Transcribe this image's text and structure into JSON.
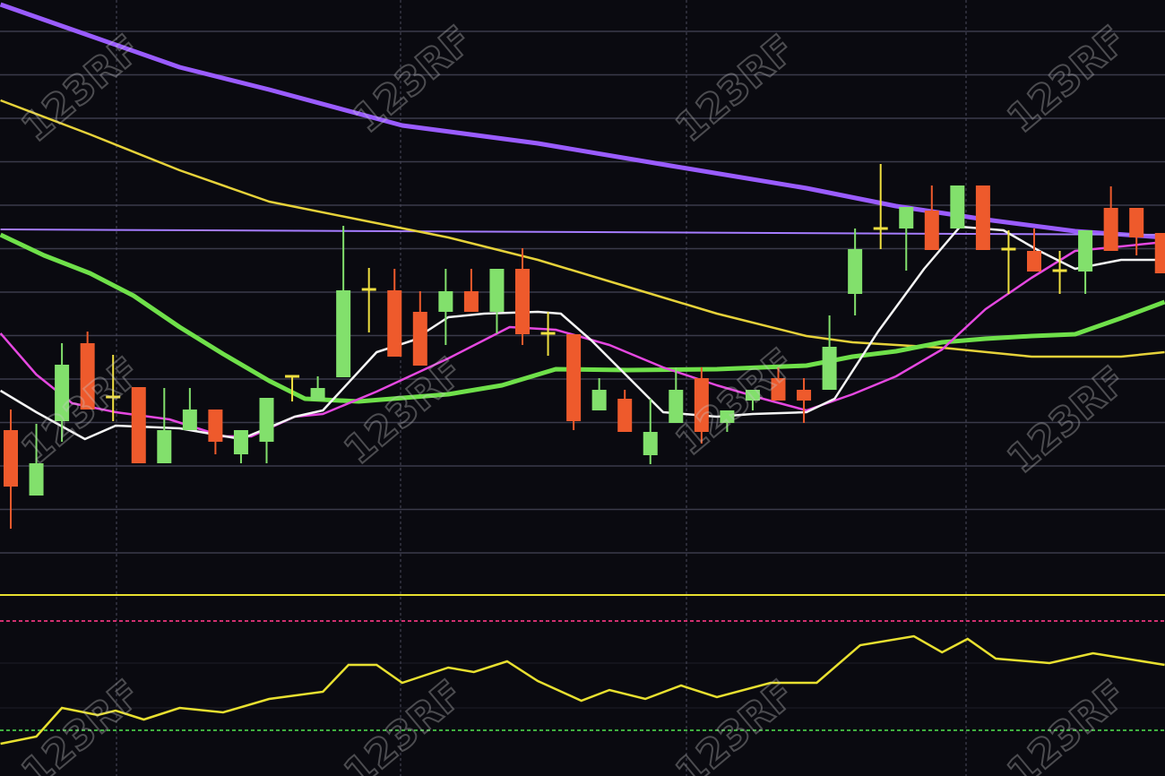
{
  "chart_data": {
    "type": "candlestick",
    "title": "",
    "xlabel": "",
    "ylabel": "",
    "grid": true,
    "ylim": [
      38.3,
      100
    ],
    "colors": {
      "background": "#0a0a10",
      "grid": "#3a3a4a",
      "up": "#82e06c",
      "down": "#ee5a2c",
      "doji": "#f0e040"
    },
    "candles": [
      {
        "o": 52.0,
        "h": 54.3,
        "l": 41.0,
        "c": 45.7
      },
      {
        "o": 44.7,
        "h": 52.7,
        "l": 44.7,
        "c": 48.3
      },
      {
        "o": 53.0,
        "h": 61.7,
        "l": 50.7,
        "c": 59.3
      },
      {
        "o": 61.7,
        "h": 63.0,
        "l": 54.3,
        "c": 54.3
      },
      {
        "o": 55.7,
        "h": 60.4,
        "l": 53.0,
        "c": 55.7
      },
      {
        "o": 56.8,
        "h": 56.8,
        "l": 48.3,
        "c": 48.3
      },
      {
        "o": 48.3,
        "h": 56.7,
        "l": 48.3,
        "c": 52.0
      },
      {
        "o": 52.0,
        "h": 56.7,
        "l": 52.0,
        "c": 54.3
      },
      {
        "o": 54.3,
        "h": 54.3,
        "l": 49.3,
        "c": 50.7
      },
      {
        "o": 49.3,
        "h": 52.0,
        "l": 48.3,
        "c": 52.0
      },
      {
        "o": 50.7,
        "h": 55.6,
        "l": 48.3,
        "c": 55.6
      },
      {
        "o": 58.0,
        "h": 58.0,
        "l": 55.2,
        "c": 58.0
      },
      {
        "o": 55.3,
        "h": 58.0,
        "l": 55.3,
        "c": 56.7
      },
      {
        "o": 57.9,
        "h": 74.8,
        "l": 57.9,
        "c": 67.6
      },
      {
        "o": 67.7,
        "h": 70.1,
        "l": 62.9,
        "c": 67.7
      },
      {
        "o": 67.6,
        "h": 70.0,
        "l": 60.2,
        "c": 60.2
      },
      {
        "o": 65.2,
        "h": 67.5,
        "l": 59.2,
        "c": 59.2
      },
      {
        "o": 65.2,
        "h": 70.0,
        "l": 61.5,
        "c": 67.5
      },
      {
        "o": 67.5,
        "h": 70.0,
        "l": 65.2,
        "c": 65.2
      },
      {
        "o": 65.2,
        "h": 70.0,
        "l": 62.8,
        "c": 70.0
      },
      {
        "o": 70.0,
        "h": 72.3,
        "l": 61.5,
        "c": 62.7
      },
      {
        "o": 62.8,
        "h": 65.2,
        "l": 60.3,
        "c": 62.8
      },
      {
        "o": 62.7,
        "h": 62.7,
        "l": 52.0,
        "c": 53.0
      },
      {
        "o": 54.2,
        "h": 57.8,
        "l": 54.2,
        "c": 56.5
      },
      {
        "o": 55.5,
        "h": 56.5,
        "l": 51.8,
        "c": 51.8
      },
      {
        "o": 49.2,
        "h": 55.5,
        "l": 48.2,
        "c": 51.8
      },
      {
        "o": 52.8,
        "h": 59.0,
        "l": 52.8,
        "c": 56.5
      },
      {
        "o": 57.8,
        "h": 59.0,
        "l": 50.5,
        "c": 51.8
      },
      {
        "o": 52.8,
        "h": 54.2,
        "l": 51.8,
        "c": 54.2
      },
      {
        "o": 55.3,
        "h": 56.5,
        "l": 54.2,
        "c": 56.5
      },
      {
        "o": 57.8,
        "h": 59.0,
        "l": 55.3,
        "c": 55.3
      },
      {
        "o": 56.5,
        "h": 57.8,
        "l": 52.8,
        "c": 55.3
      },
      {
        "o": 56.5,
        "h": 64.8,
        "l": 56.5,
        "c": 61.3
      },
      {
        "o": 67.2,
        "h": 74.5,
        "l": 64.8,
        "c": 72.2
      },
      {
        "o": 74.5,
        "h": 81.7,
        "l": 72.2,
        "c": 74.5
      },
      {
        "o": 74.5,
        "h": 76.9,
        "l": 69.8,
        "c": 76.9
      },
      {
        "o": 76.5,
        "h": 79.3,
        "l": 72.1,
        "c": 72.1
      },
      {
        "o": 74.5,
        "h": 79.3,
        "l": 74.5,
        "c": 79.3
      },
      {
        "o": 79.3,
        "h": 79.3,
        "l": 72.1,
        "c": 72.1
      },
      {
        "o": 72.2,
        "h": 74.3,
        "l": 67.2,
        "c": 72.2
      },
      {
        "o": 72.0,
        "h": 74.5,
        "l": 69.7,
        "c": 69.7
      },
      {
        "o": 69.8,
        "h": 72.0,
        "l": 67.2,
        "c": 69.8
      },
      {
        "o": 69.7,
        "h": 74.3,
        "l": 67.2,
        "c": 74.3
      },
      {
        "o": 76.8,
        "h": 79.2,
        "l": 72.0,
        "c": 72.0
      },
      {
        "o": 76.8,
        "h": 76.8,
        "l": 71.5,
        "c": 73.5
      },
      {
        "o": 74.0,
        "h": 74.0,
        "l": 69.5,
        "c": 69.5
      }
    ],
    "overlays": [
      {
        "color": "#9a5cff",
        "weight": "thick",
        "points": [
          [
            -0.4,
            99.5
          ],
          [
            3.1,
            96.0
          ],
          [
            6.6,
            92.5
          ],
          [
            10.1,
            90.0
          ],
          [
            15.3,
            86.0
          ],
          [
            20.6,
            84.0
          ],
          [
            25.8,
            81.5
          ],
          [
            31.1,
            79.0
          ],
          [
            34.6,
            77.0
          ],
          [
            38.1,
            75.5
          ],
          [
            41.6,
            74.2
          ],
          [
            45.1,
            73.5
          ]
        ]
      },
      {
        "color": "#a57cff",
        "weight": "thin",
        "points": [
          [
            -0.4,
            74.4
          ],
          [
            45.1,
            73.8
          ]
        ]
      },
      {
        "color": "#e6d23a",
        "weight": "normal",
        "points": [
          [
            -0.4,
            88.8
          ],
          [
            3.1,
            85.0
          ],
          [
            6.6,
            81.0
          ],
          [
            10.1,
            77.5
          ],
          [
            13.6,
            75.5
          ],
          [
            17.1,
            73.5
          ],
          [
            20.6,
            71.0
          ],
          [
            24.1,
            68.0
          ],
          [
            27.6,
            65.0
          ],
          [
            31.1,
            62.5
          ],
          [
            32.9,
            61.8
          ],
          [
            36.4,
            61.2
          ],
          [
            39.9,
            60.2
          ],
          [
            43.4,
            60.2
          ],
          [
            45.1,
            60.7
          ]
        ]
      },
      {
        "color": "#6fe04a",
        "weight": "thick",
        "points": [
          [
            -0.4,
            73.8
          ],
          [
            1.3,
            71.5
          ],
          [
            3.1,
            69.5
          ],
          [
            4.8,
            67.0
          ],
          [
            6.6,
            63.5
          ],
          [
            8.3,
            60.5
          ],
          [
            10.1,
            57.5
          ],
          [
            11.5,
            55.5
          ],
          [
            13.6,
            55.2
          ],
          [
            17.1,
            56.0
          ],
          [
            19.2,
            57.0
          ],
          [
            21.3,
            58.8
          ],
          [
            24.1,
            58.7
          ],
          [
            27.6,
            58.8
          ],
          [
            31.1,
            59.2
          ],
          [
            32.9,
            60.2
          ],
          [
            34.6,
            60.8
          ],
          [
            36.4,
            61.8
          ],
          [
            38.1,
            62.2
          ],
          [
            39.9,
            62.5
          ],
          [
            41.6,
            62.7
          ],
          [
            43.4,
            64.5
          ],
          [
            45.1,
            66.3
          ]
        ]
      },
      {
        "color": "#e548e0",
        "weight": "normal",
        "points": [
          [
            -0.4,
            62.8
          ],
          [
            1.0,
            58.2
          ],
          [
            2.4,
            55.0
          ],
          [
            4.1,
            54.0
          ],
          [
            6.2,
            53.2
          ],
          [
            8.3,
            51.3
          ],
          [
            9.4,
            51.3
          ],
          [
            11.1,
            53.5
          ],
          [
            12.2,
            53.8
          ],
          [
            14.3,
            56.3
          ],
          [
            17.1,
            60.0
          ],
          [
            19.5,
            63.5
          ],
          [
            21.3,
            63.2
          ],
          [
            23.4,
            61.5
          ],
          [
            25.5,
            59.0
          ],
          [
            27.6,
            57.0
          ],
          [
            29.4,
            55.5
          ],
          [
            31.1,
            54.2
          ],
          [
            32.9,
            56.0
          ],
          [
            34.6,
            58.0
          ],
          [
            36.4,
            61.0
          ],
          [
            38.1,
            65.5
          ],
          [
            39.9,
            69.0
          ],
          [
            41.6,
            72.0
          ],
          [
            43.4,
            72.5
          ],
          [
            45.1,
            73.0
          ]
        ]
      },
      {
        "color": "#f4f4f4",
        "weight": "normal",
        "points": [
          [
            -0.4,
            56.4
          ],
          [
            1.0,
            54.0
          ],
          [
            2.9,
            51.0
          ],
          [
            4.1,
            52.5
          ],
          [
            6.6,
            52.2
          ],
          [
            9.0,
            51.0
          ],
          [
            11.1,
            53.5
          ],
          [
            12.2,
            54.2
          ],
          [
            14.3,
            60.7
          ],
          [
            15.7,
            62.0
          ],
          [
            17.1,
            64.6
          ],
          [
            18.5,
            65.0
          ],
          [
            20.6,
            65.2
          ],
          [
            21.5,
            65.0
          ],
          [
            22.7,
            62.0
          ],
          [
            24.1,
            58.0
          ],
          [
            25.5,
            54.0
          ],
          [
            27.6,
            53.5
          ],
          [
            29.0,
            53.8
          ],
          [
            31.1,
            54.0
          ],
          [
            32.2,
            55.5
          ],
          [
            33.9,
            63.0
          ],
          [
            35.7,
            70.0
          ],
          [
            37.1,
            74.7
          ],
          [
            38.8,
            74.3
          ],
          [
            40.2,
            72.0
          ],
          [
            41.6,
            70.0
          ],
          [
            43.4,
            71.0
          ],
          [
            45.1,
            71.0
          ]
        ]
      }
    ],
    "indicator": {
      "color": "#e8e030",
      "levels": [
        {
          "value": 33.6,
          "color": "#e8e030",
          "style": "solid"
        },
        {
          "value": 30.7,
          "color": "#d03070",
          "style": "dashed"
        },
        {
          "value": 18.5,
          "color": "#40b040",
          "style": "dashed"
        }
      ],
      "points": [
        [
          -0.4,
          17.0
        ],
        [
          1.0,
          17.8
        ],
        [
          2.0,
          21.0
        ],
        [
          3.4,
          20.2
        ],
        [
          4.1,
          20.7
        ],
        [
          5.2,
          19.7
        ],
        [
          6.6,
          21.0
        ],
        [
          8.3,
          20.5
        ],
        [
          10.1,
          22.0
        ],
        [
          12.2,
          22.8
        ],
        [
          13.2,
          25.8
        ],
        [
          14.3,
          25.8
        ],
        [
          15.3,
          23.8
        ],
        [
          17.1,
          25.5
        ],
        [
          18.1,
          25.0
        ],
        [
          19.4,
          26.2
        ],
        [
          20.6,
          24.0
        ],
        [
          22.3,
          21.8
        ],
        [
          23.4,
          23.0
        ],
        [
          24.8,
          22.0
        ],
        [
          26.2,
          23.5
        ],
        [
          27.6,
          22.2
        ],
        [
          29.7,
          23.8
        ],
        [
          31.5,
          23.8
        ],
        [
          33.2,
          28.0
        ],
        [
          35.3,
          29.0
        ],
        [
          36.4,
          27.2
        ],
        [
          37.4,
          28.7
        ],
        [
          38.5,
          26.5
        ],
        [
          40.6,
          26.0
        ],
        [
          42.3,
          27.1
        ],
        [
          45.1,
          25.8
        ]
      ]
    }
  },
  "watermark": "123RF"
}
